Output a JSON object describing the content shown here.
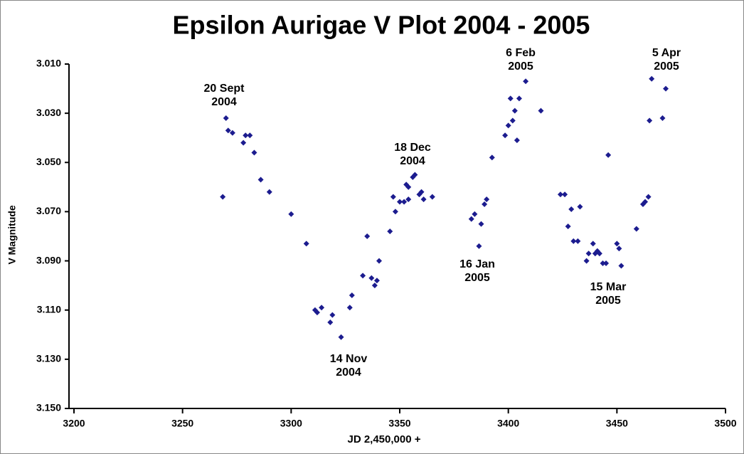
{
  "chart_data": {
    "type": "scatter",
    "title": "Epsilon Aurigae V Plot 2004 - 2005",
    "x_label": "JD 2,450,000 +",
    "y_label": "V Magnitude",
    "color": "#1c1c8f",
    "xlim": [
      3200,
      3500
    ],
    "xticks": [
      3200,
      3250,
      3300,
      3350,
      3400,
      3450,
      3500
    ],
    "ylim": [
      3.01,
      3.15
    ],
    "y_inverted": true,
    "yticks": [
      {
        "value": 3.01,
        "label": "3.010"
      },
      {
        "value": 3.03,
        "label": "3.030"
      },
      {
        "value": 3.05,
        "label": "3.050"
      },
      {
        "value": 3.07,
        "label": "3.070"
      },
      {
        "value": 3.09,
        "label": "3.090"
      },
      {
        "value": 3.11,
        "label": "3.110"
      },
      {
        "value": 3.13,
        "label": "3.130"
      },
      {
        "value": 3.15,
        "label": "3.150"
      }
    ],
    "annotations": [
      [
        "20 Sept",
        "2004"
      ],
      [
        "6 Feb",
        "2005"
      ],
      [
        "18 Dec",
        "2004"
      ],
      [
        "5 Apr",
        "2005"
      ],
      [
        "16 Jan",
        "2005"
      ],
      [
        "15 Mar",
        "2005"
      ],
      [
        "14 Nov",
        "2004"
      ]
    ],
    "x": [
      3268.5,
      3270,
      3271,
      3273,
      3278,
      3279,
      3281,
      3283,
      3286,
      3290,
      3300,
      3307,
      3311,
      3312,
      3314,
      3318,
      3319,
      3323,
      3327,
      3328,
      3333,
      3335,
      3337,
      3338.5,
      3339.5,
      3340.5,
      3345.5,
      3347,
      3348,
      3350,
      3352,
      3353,
      3354,
      3354,
      3356,
      3357,
      3359,
      3360,
      3361,
      3365,
      3383,
      3384.5,
      3386.5,
      3387.5,
      3389,
      3390,
      3392.5,
      3398.5,
      3400,
      3401,
      3402,
      3403,
      3404,
      3405,
      3408,
      3415,
      3424,
      3426,
      3427.5,
      3429,
      3430,
      3432,
      3433,
      3436,
      3437,
      3439,
      3440,
      3441,
      3442,
      3443.5,
      3445,
      3446,
      3450,
      3451,
      3452,
      3459,
      3462,
      3463,
      3464.5,
      3465,
      3466,
      3471,
      3472.5
    ],
    "values": [
      3.064,
      3.032,
      3.037,
      3.038,
      3.042,
      3.039,
      3.039,
      3.046,
      3.057,
      3.062,
      3.071,
      3.083,
      3.11,
      3.111,
      3.109,
      3.115,
      3.112,
      3.121,
      3.109,
      3.104,
      3.096,
      3.08,
      3.097,
      3.1,
      3.098,
      3.09,
      3.078,
      3.064,
      3.07,
      3.066,
      3.066,
      3.059,
      3.06,
      3.065,
      3.056,
      3.055,
      3.063,
      3.062,
      3.065,
      3.064,
      3.073,
      3.071,
      3.084,
      3.075,
      3.067,
      3.065,
      3.048,
      3.039,
      3.035,
      3.024,
      3.033,
      3.029,
      3.041,
      3.024,
      3.017,
      3.029,
      3.063,
      3.063,
      3.076,
      3.069,
      3.082,
      3.082,
      3.068,
      3.09,
      3.087,
      3.083,
      3.087,
      3.086,
      3.087,
      3.091,
      3.091,
      3.047,
      3.083,
      3.085,
      3.092,
      3.077,
      3.067,
      3.066,
      3.064,
      3.033,
      3.016,
      3.032,
      3.02
    ]
  }
}
